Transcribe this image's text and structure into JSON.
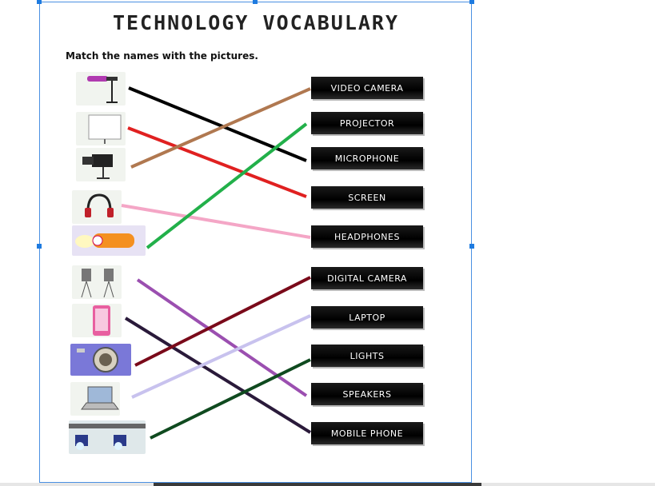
{
  "document": {
    "title": "TECHNOLOGY VOCABULARY",
    "instruction": "Match the names with the pictures."
  },
  "labels": [
    "VIDEO CAMERA",
    "PROJECTOR",
    "MICROPHONE",
    "SCREEN",
    "HEADPHONES",
    "DIGITAL CAMERA",
    "LAPTOP",
    "LIGHTS",
    "SPEAKERS",
    "MOBILE PHONE"
  ],
  "pictures": [
    {
      "icon": "microphone-icon"
    },
    {
      "icon": "screen-icon"
    },
    {
      "icon": "video-camera-icon"
    },
    {
      "icon": "headphones-icon"
    },
    {
      "icon": "projector-icon"
    },
    {
      "icon": "speakers-icon"
    },
    {
      "icon": "mobile-phone-icon"
    },
    {
      "icon": "digital-camera-icon"
    },
    {
      "icon": "laptop-icon"
    },
    {
      "icon": "lights-icon"
    }
  ],
  "matches": [
    {
      "picture": "microphone",
      "label": "MICROPHONE",
      "color": "#000000"
    },
    {
      "picture": "screen",
      "label": "SCREEN",
      "color": "#e02020"
    },
    {
      "picture": "video camera",
      "label": "VIDEO CAMERA",
      "color": "#b07850"
    },
    {
      "picture": "headphones",
      "label": "HEADPHONES",
      "color": "#f4a6c6"
    },
    {
      "picture": "projector",
      "label": "PROJECTOR",
      "color": "#22b04a"
    },
    {
      "picture": "speakers",
      "label": "SPEAKERS",
      "color": "#9b4fb0"
    },
    {
      "picture": "mobile phone",
      "label": "MOBILE PHONE",
      "color": "#2a1a3a"
    },
    {
      "picture": "digital camera",
      "label": "DIGITAL CAMERA",
      "color": "#7a0a1a"
    },
    {
      "picture": "laptop",
      "label": "LAPTOP",
      "color": "#c8c2ee"
    },
    {
      "picture": "lights",
      "label": "LIGHTS",
      "color": "#0f4a1f"
    }
  ]
}
